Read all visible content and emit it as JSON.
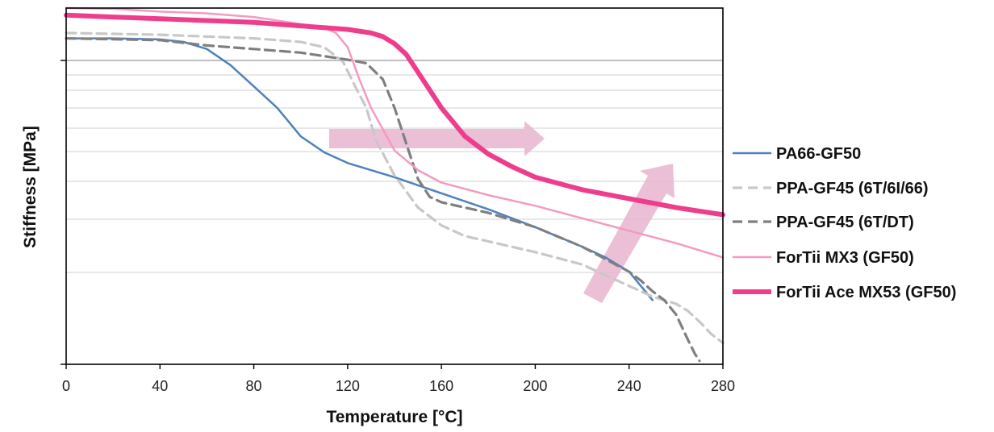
{
  "chart_data": {
    "type": "line",
    "title": "",
    "xlabel": "Temperature [°C]",
    "ylabel": "Stiffness [MPa]",
    "xlim": [
      0,
      280
    ],
    "xticks": [
      "0",
      "40",
      "80",
      "120",
      "160",
      "200",
      "240",
      "280"
    ],
    "yscale": "log",
    "y_tick_labels_shown": false,
    "grid": "horizontal",
    "legend_position": "right",
    "series": [
      {
        "name": "PA66-GF50",
        "color": "#4f81bd",
        "style": "solid",
        "x": [
          0,
          20,
          40,
          50,
          60,
          70,
          80,
          90,
          100,
          110,
          120,
          140,
          160,
          180,
          200,
          220,
          230,
          240,
          245,
          250
        ],
        "y": [
          0.915,
          0.915,
          0.912,
          0.905,
          0.885,
          0.84,
          0.78,
          0.72,
          0.64,
          0.595,
          0.565,
          0.525,
          0.48,
          0.435,
          0.385,
          0.33,
          0.3,
          0.26,
          0.22,
          0.18
        ]
      },
      {
        "name": "PPA-GF45 (6T/6I/66)",
        "color": "#c8c8c8",
        "style": "dashed",
        "x": [
          0,
          40,
          80,
          100,
          110,
          118,
          124,
          128,
          132,
          140,
          150,
          160,
          170,
          180,
          200,
          220,
          240,
          250,
          260,
          265,
          270,
          275,
          280
        ],
        "y": [
          0.93,
          0.925,
          0.915,
          0.905,
          0.89,
          0.85,
          0.77,
          0.72,
          0.63,
          0.53,
          0.44,
          0.39,
          0.36,
          0.345,
          0.315,
          0.28,
          0.22,
          0.19,
          0.17,
          0.15,
          0.12,
          0.085,
          0.06
        ]
      },
      {
        "name": "PPA-GF45 (6T/DT)",
        "color": "#7f7f7f",
        "style": "dashed",
        "x": [
          0,
          40,
          60,
          80,
          100,
          110,
          120,
          128,
          135,
          140,
          145,
          150,
          155,
          160,
          180,
          200,
          220,
          240,
          245,
          250,
          255,
          260,
          265,
          268,
          270
        ],
        "y": [
          0.915,
          0.91,
          0.895,
          0.885,
          0.875,
          0.865,
          0.855,
          0.845,
          0.8,
          0.72,
          0.62,
          0.52,
          0.47,
          0.455,
          0.425,
          0.385,
          0.33,
          0.26,
          0.235,
          0.205,
          0.18,
          0.14,
          0.07,
          0.03,
          0.01
        ]
      },
      {
        "name": "ForTii MX3 (GF50)",
        "color": "#f49ac2",
        "style": "solid",
        "x": [
          0,
          20,
          40,
          60,
          80,
          100,
          110,
          115,
          120,
          125,
          130,
          135,
          140,
          150,
          160,
          180,
          200,
          220,
          240,
          260,
          280
        ],
        "y": [
          1.0,
          0.998,
          0.99,
          0.985,
          0.975,
          0.955,
          0.945,
          0.93,
          0.89,
          0.8,
          0.72,
          0.66,
          0.6,
          0.545,
          0.51,
          0.475,
          0.445,
          0.41,
          0.375,
          0.34,
          0.3
        ]
      },
      {
        "name": "ForTii Ace MX53 (GF50)",
        "color": "#ee3d8c",
        "style": "solid-thick",
        "x": [
          0,
          20,
          40,
          60,
          80,
          100,
          120,
          130,
          135,
          140,
          145,
          150,
          155,
          160,
          165,
          170,
          180,
          190,
          200,
          220,
          240,
          260,
          280
        ],
        "y": [
          0.98,
          0.975,
          0.97,
          0.965,
          0.96,
          0.95,
          0.94,
          0.93,
          0.92,
          0.9,
          0.87,
          0.82,
          0.77,
          0.72,
          0.68,
          0.64,
          0.59,
          0.555,
          0.525,
          0.49,
          0.465,
          0.44,
          0.42
        ]
      }
    ],
    "annotations": [
      {
        "type": "arrow",
        "direction": "right",
        "color": "#e8b4cf"
      },
      {
        "type": "arrow",
        "direction": "up-right",
        "color": "#e8b4cf"
      }
    ]
  }
}
